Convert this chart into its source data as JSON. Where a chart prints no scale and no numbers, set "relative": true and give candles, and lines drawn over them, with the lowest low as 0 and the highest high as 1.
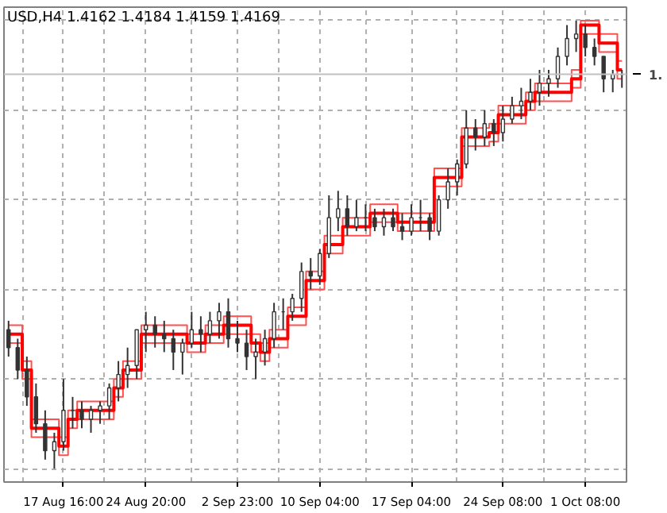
{
  "chart_data": {
    "type": "candlestick",
    "title": "USD,H4  1.4162 1.4184 1.4159 1.4169",
    "relative": true,
    "categories": [
      null,
      null,
      null,
      null,
      null,
      null,
      "17 Aug 16:00",
      null,
      null,
      null,
      null,
      null,
      null,
      null,
      null,
      "24 Aug 20:00",
      null,
      null,
      null,
      null,
      null,
      null,
      null,
      null,
      null,
      "2 Sep 23:00",
      null,
      null,
      null,
      null,
      null,
      null,
      null,
      null,
      "10 Sep 04:00",
      null,
      null,
      null,
      null,
      null,
      null,
      null,
      null,
      null,
      "17 Sep 04:00",
      null,
      null,
      null,
      null,
      null,
      null,
      null,
      null,
      null,
      "24 Sep 08:00",
      null,
      null,
      null,
      null,
      null,
      null,
      null,
      null,
      "1 Oct 08:00",
      null,
      null,
      null,
      null
    ],
    "ohlc": [
      [
        0.31,
        0.33,
        0.25,
        0.27
      ],
      [
        0.27,
        0.29,
        0.2,
        0.22
      ],
      [
        0.22,
        0.25,
        0.14,
        0.16
      ],
      [
        0.16,
        0.19,
        0.08,
        0.1
      ],
      [
        0.1,
        0.13,
        0.02,
        0.04
      ],
      [
        0.04,
        0.08,
        0,
        0.06
      ],
      [
        0.06,
        0.2,
        0.04,
        0.13
      ],
      [
        0.13,
        0.16,
        0.09,
        0.13
      ],
      [
        0.13,
        0.15,
        0.09,
        0.11
      ],
      [
        0.11,
        0.14,
        0.08,
        0.13
      ],
      [
        0.13,
        0.15,
        0.1,
        0.14
      ],
      [
        0.14,
        0.19,
        0.11,
        0.18
      ],
      [
        0.18,
        0.24,
        0.15,
        0.21
      ],
      [
        0.21,
        0.27,
        0.18,
        0.23
      ],
      [
        0.23,
        0.31,
        0.2,
        0.31
      ],
      [
        0.31,
        0.35,
        0.26,
        0.32
      ],
      [
        0.32,
        0.34,
        0.27,
        0.3
      ],
      [
        0.3,
        0.33,
        0.26,
        0.29
      ],
      [
        0.29,
        0.31,
        0.22,
        0.26
      ],
      [
        0.26,
        0.29,
        0.21,
        0.28
      ],
      [
        0.28,
        0.35,
        0.27,
        0.31
      ],
      [
        0.31,
        0.34,
        0.26,
        0.3
      ],
      [
        0.3,
        0.35,
        0.28,
        0.33
      ],
      [
        0.33,
        0.37,
        0.29,
        0.35
      ],
      [
        0.35,
        0.38,
        0.27,
        0.29
      ],
      [
        0.29,
        0.33,
        0.26,
        0.28
      ],
      [
        0.28,
        0.31,
        0.22,
        0.25
      ],
      [
        0.25,
        0.29,
        0.2,
        0.26
      ],
      [
        0.26,
        0.31,
        0.23,
        0.29
      ],
      [
        0.29,
        0.37,
        0.27,
        0.35
      ],
      [
        0.35,
        0.38,
        0.31,
        0.35
      ],
      [
        0.35,
        0.39,
        0.33,
        0.38
      ],
      [
        0.38,
        0.46,
        0.35,
        0.44
      ],
      [
        0.44,
        0.47,
        0.4,
        0.43
      ],
      [
        0.43,
        0.49,
        0.41,
        0.48
      ],
      [
        0.48,
        0.61,
        0.47,
        0.56
      ],
      [
        0.56,
        0.62,
        0.53,
        0.58
      ],
      [
        0.58,
        0.61,
        0.52,
        0.54
      ],
      [
        0.54,
        0.6,
        0.53,
        0.56
      ],
      [
        0.56,
        0.59,
        0.53,
        0.56
      ],
      [
        0.56,
        0.58,
        0.53,
        0.54
      ],
      [
        0.54,
        0.58,
        0.52,
        0.56
      ],
      [
        0.56,
        0.58,
        0.53,
        0.54
      ],
      [
        0.54,
        0.57,
        0.51,
        0.53
      ],
      [
        0.53,
        0.59,
        0.52,
        0.56
      ],
      [
        0.56,
        0.6,
        0.53,
        0.56
      ],
      [
        0.56,
        0.57,
        0.51,
        0.53
      ],
      [
        0.53,
        0.61,
        0.52,
        0.6
      ],
      [
        0.6,
        0.67,
        0.58,
        0.64
      ],
      [
        0.64,
        0.69,
        0.61,
        0.68
      ],
      [
        0.68,
        0.8,
        0.67,
        0.76
      ],
      [
        0.76,
        0.78,
        0.71,
        0.74
      ],
      [
        0.74,
        0.8,
        0.72,
        0.77
      ],
      [
        0.77,
        0.78,
        0.72,
        0.75
      ],
      [
        0.75,
        0.81,
        0.73,
        0.78
      ],
      [
        0.78,
        0.83,
        0.77,
        0.81
      ],
      [
        0.81,
        0.85,
        0.78,
        0.82
      ],
      [
        0.82,
        0.87,
        0.8,
        0.84
      ],
      [
        0.84,
        0.89,
        0.81,
        0.86
      ],
      [
        0.86,
        0.89,
        0.83,
        0.87
      ],
      [
        0.87,
        0.94,
        0.85,
        0.92
      ],
      [
        0.92,
        0.99,
        0.9,
        0.96
      ],
      [
        0.96,
        1.0,
        0.93,
        0.97
      ],
      [
        0.97,
        0.99,
        0.92,
        0.94
      ],
      [
        0.94,
        0.96,
        0.9,
        0.92
      ],
      [
        0.92,
        0.92,
        0.84,
        0.87
      ],
      [
        0.87,
        0.89,
        0.84,
        0.88
      ],
      [
        0.88,
        0.89,
        0.85,
        0.88
      ]
    ],
    "color": "#333333",
    "series": [
      {
        "type": "step",
        "color": "#ff0000",
        "values": [
          0.3,
          0.3,
          0.22,
          0.09,
          0.09,
          0.09,
          0.05,
          0.11,
          0.13,
          0.13,
          0.13,
          0.13,
          0.18,
          0.22,
          0.22,
          0.3,
          0.3,
          0.3,
          0.3,
          0.3,
          0.28,
          0.28,
          0.3,
          0.3,
          0.32,
          0.32,
          0.32,
          0.28,
          0.26,
          0.29,
          0.29,
          0.34,
          0.34,
          0.42,
          0.42,
          0.5,
          0.5,
          0.54,
          0.54,
          0.54,
          0.57,
          0.57,
          0.57,
          0.55,
          0.55,
          0.55,
          0.55,
          0.65,
          0.65,
          0.65,
          0.74,
          0.74,
          0.74,
          0.75,
          0.79,
          0.79,
          0.79,
          0.82,
          0.84,
          0.84,
          0.84,
          0.84,
          0.87,
          0.99,
          0.99,
          0.95,
          0.95,
          0.89
        ]
      },
      {
        "type": "step",
        "color": "#ff5050",
        "values": [
          0.32,
          0.32,
          0.24,
          0.11,
          0.11,
          0.11,
          0.07,
          0.13,
          0.15,
          0.15,
          0.15,
          0.15,
          0.2,
          0.24,
          0.24,
          0.32,
          0.32,
          0.32,
          0.32,
          0.32,
          0.3,
          0.3,
          0.32,
          0.32,
          0.34,
          0.34,
          0.34,
          0.3,
          0.28,
          0.31,
          0.31,
          0.36,
          0.36,
          0.44,
          0.44,
          0.52,
          0.52,
          0.56,
          0.56,
          0.56,
          0.59,
          0.59,
          0.59,
          0.57,
          0.57,
          0.57,
          0.57,
          0.67,
          0.67,
          0.67,
          0.76,
          0.76,
          0.76,
          0.77,
          0.81,
          0.81,
          0.81,
          0.84,
          0.86,
          0.86,
          0.86,
          0.86,
          0.89,
          1.0,
          1.0,
          0.97,
          0.97,
          0.91
        ]
      },
      {
        "type": "step",
        "color": "#ff5050",
        "values": [
          0.28,
          0.28,
          0.2,
          0.07,
          0.07,
          0.07,
          0.03,
          0.09,
          0.11,
          0.11,
          0.11,
          0.11,
          0.16,
          0.2,
          0.2,
          0.28,
          0.28,
          0.28,
          0.28,
          0.28,
          0.26,
          0.26,
          0.28,
          0.28,
          0.3,
          0.3,
          0.3,
          0.26,
          0.24,
          0.27,
          0.27,
          0.32,
          0.32,
          0.4,
          0.4,
          0.48,
          0.48,
          0.52,
          0.52,
          0.52,
          0.55,
          0.55,
          0.55,
          0.53,
          0.53,
          0.53,
          0.53,
          0.63,
          0.63,
          0.63,
          0.72,
          0.72,
          0.72,
          0.73,
          0.77,
          0.77,
          0.77,
          0.8,
          0.82,
          0.82,
          0.82,
          0.82,
          0.85,
          0.97,
          0.97,
          0.93,
          0.93,
          0.87
        ]
      }
    ],
    "ref_lines": [
      {
        "axis": "y",
        "value": 0.88,
        "label": "1.",
        "color": "#c0c0c0"
      }
    ],
    "grid": true,
    "marker": "none",
    "line_style": "solid"
  }
}
